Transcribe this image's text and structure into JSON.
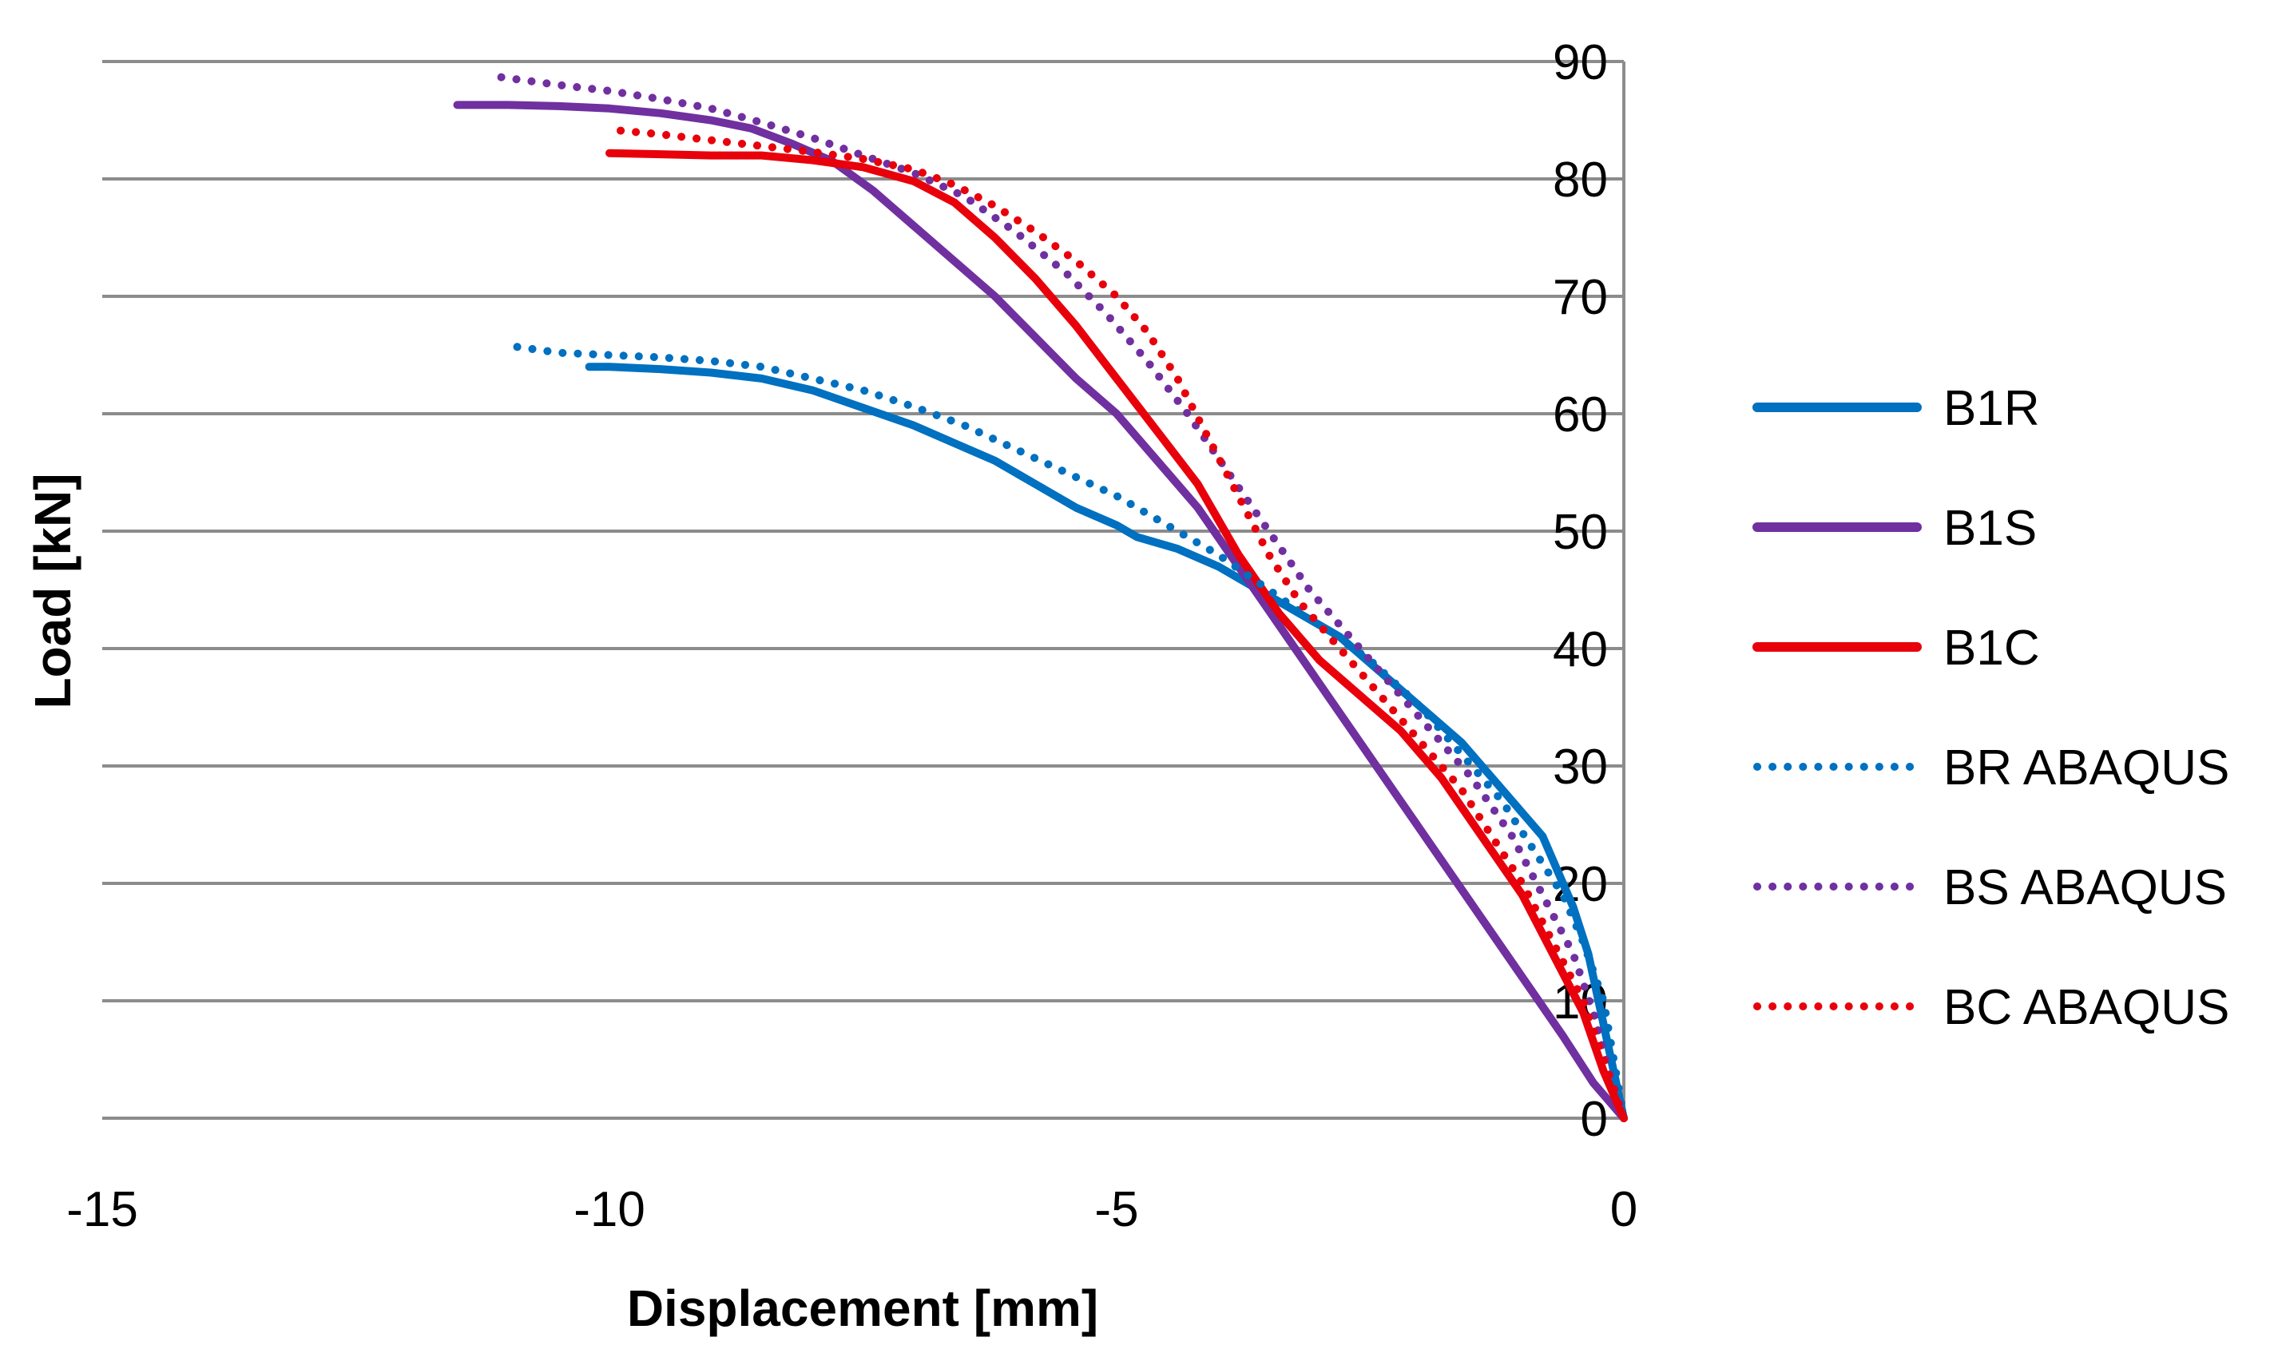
{
  "chart_data": {
    "type": "line",
    "title": "",
    "xlabel": "Displacement [mm]",
    "ylabel": "Load [kN]",
    "xlim": [
      -15,
      0
    ],
    "ylim": [
      0,
      90
    ],
    "x_ticks": [
      -15,
      -10,
      -5,
      0
    ],
    "x_tick_labels": [
      "-15",
      "-10",
      "-5",
      "0"
    ],
    "y_ticks": [
      0,
      10,
      20,
      30,
      40,
      50,
      60,
      70,
      80,
      90
    ],
    "y_tick_labels": [
      "0",
      "10",
      "20",
      "30",
      "40",
      "50",
      "60",
      "70",
      "80",
      "90"
    ],
    "grid": "horizontal",
    "legend_position": "right",
    "series": [
      {
        "name": "B1R",
        "color": "#0070C0",
        "style": "solid",
        "x": [
          0,
          -0.05,
          -0.2,
          -0.35,
          -0.5,
          -0.8,
          -1.2,
          -1.6,
          -2.0,
          -2.4,
          -2.8,
          -3.2,
          -3.6,
          -4.0,
          -4.4,
          -4.8,
          -5.0,
          -5.4,
          -5.8,
          -6.2,
          -6.6,
          -7.0,
          -7.5,
          -8.0,
          -8.5,
          -9.0,
          -9.5,
          -10.0,
          -10.2
        ],
        "values": [
          0,
          2,
          8,
          14,
          18,
          24,
          28,
          32,
          35,
          38,
          41,
          43,
          45,
          47,
          48.5,
          49.5,
          50.5,
          52,
          54,
          56,
          57.5,
          59,
          60.5,
          62,
          63,
          63.5,
          63.8,
          64,
          64
        ]
      },
      {
        "name": "B1S",
        "color": "#7030A0",
        "style": "solid",
        "x": [
          0,
          -0.3,
          -0.6,
          -1.0,
          -1.4,
          -1.8,
          -2.2,
          -2.6,
          -3.0,
          -3.4,
          -3.8,
          -4.2,
          -4.6,
          -5.0,
          -5.4,
          -5.8,
          -6.2,
          -6.6,
          -7.0,
          -7.4,
          -7.8,
          -8.2,
          -8.6,
          -9.0,
          -9.5,
          -10.0,
          -10.5,
          -11.0,
          -11.5
        ],
        "values": [
          0,
          3,
          7,
          12,
          17,
          22,
          27,
          32,
          37,
          42,
          47,
          52,
          56,
          60,
          63,
          66.5,
          70,
          73,
          76,
          79,
          81.5,
          83,
          84.3,
          85,
          85.6,
          86,
          86.2,
          86.3,
          86.3
        ]
      },
      {
        "name": "B1C",
        "color": "#E8000B",
        "style": "solid",
        "x": [
          0,
          -0.2,
          -0.4,
          -0.7,
          -1.0,
          -1.4,
          -1.8,
          -2.2,
          -2.6,
          -3.0,
          -3.4,
          -3.8,
          -4.2,
          -4.6,
          -5.0,
          -5.4,
          -5.8,
          -6.2,
          -6.6,
          -7.0,
          -7.5,
          -8.0,
          -8.5,
          -9.0,
          -9.5,
          -10.0
        ],
        "values": [
          0,
          4,
          9,
          14,
          19,
          24,
          29,
          33,
          36,
          39,
          43,
          48,
          54,
          58.5,
          63,
          67.5,
          71.5,
          75,
          78,
          79.8,
          81,
          81.6,
          82,
          82,
          82.1,
          82.2
        ]
      },
      {
        "name": "BR ABAQUS",
        "color": "#0070C0",
        "style": "dotted",
        "x": [
          0,
          -0.1,
          -0.2,
          -0.4,
          -0.6,
          -0.9,
          -1.2,
          -1.6,
          -2.0,
          -2.5,
          -3.0,
          -3.5,
          -4.0,
          -4.5,
          -5.0,
          -5.5,
          -6.0,
          -6.5,
          -7.0,
          -7.5,
          -8.0,
          -8.5,
          -9.0,
          -9.5,
          -10.0,
          -10.5,
          -11.0
        ],
        "values": [
          0,
          5,
          10,
          15,
          19,
          23,
          27,
          31,
          35,
          39,
          42,
          45,
          48,
          50.5,
          53,
          55,
          57,
          59,
          60.6,
          62,
          63,
          64,
          64.5,
          64.8,
          65,
          65.2,
          65.8
        ]
      },
      {
        "name": "BS ABAQUS",
        "color": "#7030A0",
        "style": "dotted",
        "x": [
          0,
          -0.15,
          -0.3,
          -0.5,
          -0.8,
          -1.1,
          -1.5,
          -1.9,
          -2.3,
          -2.7,
          -3.1,
          -3.5,
          -3.9,
          -4.3,
          -4.7,
          -5.1,
          -5.5,
          -6.0,
          -6.5,
          -7.0,
          -7.5,
          -8.0,
          -8.5,
          -9.0,
          -9.5,
          -10.0,
          -10.5,
          -11.1
        ],
        "values": [
          0,
          4,
          9,
          14,
          19,
          24,
          29,
          33,
          37,
          41,
          45,
          50,
          55,
          60,
          64.5,
          68.5,
          72,
          75.5,
          78.5,
          80.5,
          82,
          83.5,
          84.8,
          86,
          86.8,
          87.5,
          88,
          88.7
        ]
      },
      {
        "name": "BC ABAQUS",
        "color": "#E8000B",
        "style": "dotted",
        "x": [
          0,
          -0.2,
          -0.4,
          -0.7,
          -1.0,
          -1.3,
          -1.6,
          -2.0,
          -2.4,
          -2.8,
          -3.2,
          -3.5,
          -3.8,
          -4.1,
          -4.4,
          -4.7,
          -5.0,
          -5.4,
          -5.8,
          -6.2,
          -6.6,
          -7.0,
          -7.5,
          -8.0,
          -8.5,
          -9.0,
          -9.5,
          -10.0
        ],
        "values": [
          0,
          5,
          10,
          15,
          20,
          24,
          28,
          32,
          36,
          40,
          44,
          48,
          53,
          58,
          63,
          67,
          70,
          73,
          75.5,
          77.7,
          79.5,
          80.8,
          81.7,
          82.3,
          82.8,
          83.3,
          83.8,
          84.2
        ]
      }
    ]
  }
}
